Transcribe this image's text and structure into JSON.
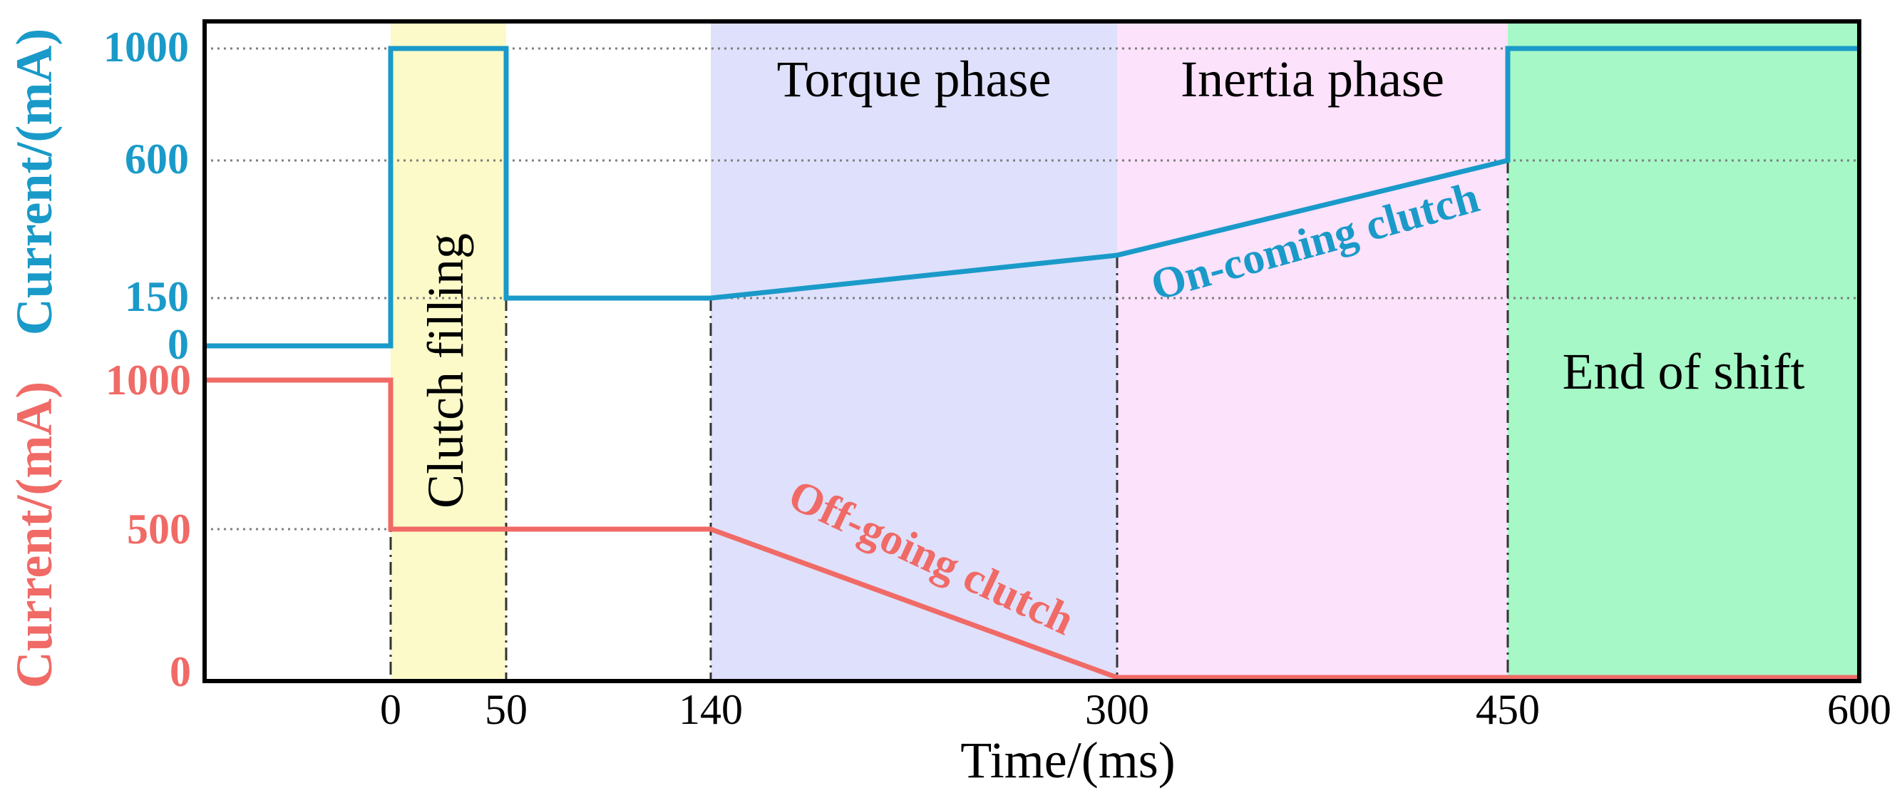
{
  "chart_data": {
    "type": "line",
    "xlabel": "Time/(ms)",
    "x_ticks": [
      "0",
      "50",
      "140",
      "300",
      "450",
      "600"
    ],
    "x_tick_values": [
      0,
      50,
      140,
      300,
      450,
      600
    ],
    "xlim": [
      -80,
      600
    ],
    "boundary_times": [
      0,
      50,
      140,
      300,
      450
    ],
    "colors": {
      "oncoming": "#1a9ac9",
      "offgoing": "#f06a66",
      "clutch_filling": "#fbfac8",
      "torque": "#dfe0fb",
      "inertia": "#fde2fb",
      "end_of_shift": "#a6f8c6",
      "frame": "#000000",
      "grid": "#7f7f7f"
    },
    "phases": [
      {
        "name": "Clutch filling",
        "start": 0,
        "end": 50,
        "color_key": "clutch_filling",
        "vertical": true
      },
      {
        "name": "Torque phase",
        "start": 140,
        "end": 300,
        "color_key": "torque",
        "vertical": false
      },
      {
        "name": "Inertia phase",
        "start": 300,
        "end": 450,
        "color_key": "inertia",
        "vertical": false
      },
      {
        "name": "End of shift",
        "start": 450,
        "end": 600,
        "color_key": "end_of_shift",
        "vertical": false
      }
    ],
    "series": [
      {
        "name": "On-coming clutch",
        "ylabel": "Current/(mA)",
        "color_key": "oncoming",
        "y_ticks": [
          "1000",
          "600",
          "150",
          "0"
        ],
        "y_tick_values": [
          1000,
          600,
          150,
          0
        ],
        "points": [
          [
            -80,
            0
          ],
          [
            0,
            0
          ],
          [
            0,
            1000
          ],
          [
            50,
            1000
          ],
          [
            50,
            150
          ],
          [
            140,
            150
          ],
          [
            300,
            290
          ],
          [
            450,
            600
          ],
          [
            450,
            1000
          ],
          [
            600,
            1000
          ]
        ]
      },
      {
        "name": "Off-going clutch",
        "ylabel": "Current/(mA)",
        "color_key": "offgoing",
        "y_ticks": [
          "1000",
          "500",
          "0"
        ],
        "y_tick_values": [
          1000,
          500,
          0
        ],
        "points": [
          [
            -80,
            1000
          ],
          [
            0,
            1000
          ],
          [
            0,
            500
          ],
          [
            140,
            500
          ],
          [
            300,
            0
          ],
          [
            600,
            0
          ]
        ]
      }
    ]
  }
}
